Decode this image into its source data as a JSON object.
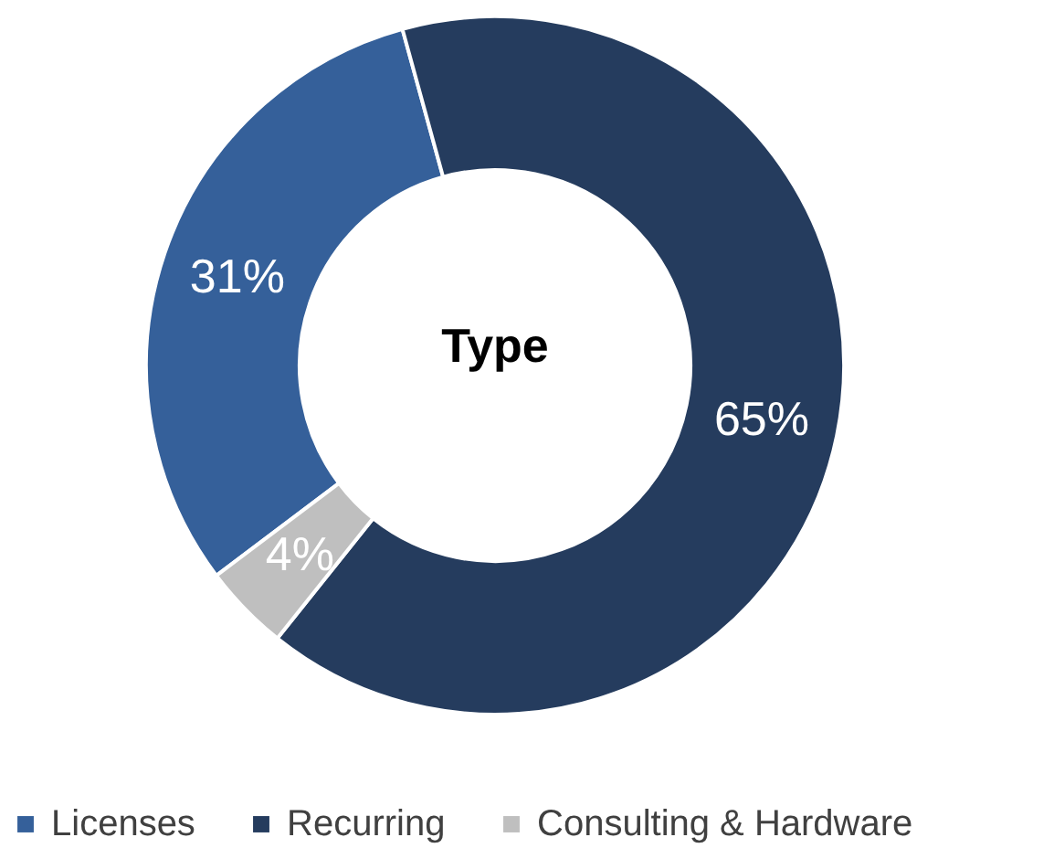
{
  "chart_data": {
    "type": "donut",
    "title": "Type",
    "categories": [
      "Licenses",
      "Recurring",
      "Consulting & Hardware"
    ],
    "values": [
      31,
      65,
      4
    ],
    "colors": [
      "#35609a",
      "#253c5e",
      "#bfbfbf"
    ],
    "value_labels": [
      "31%",
      "65%",
      "4%"
    ],
    "legend": "bottom"
  }
}
